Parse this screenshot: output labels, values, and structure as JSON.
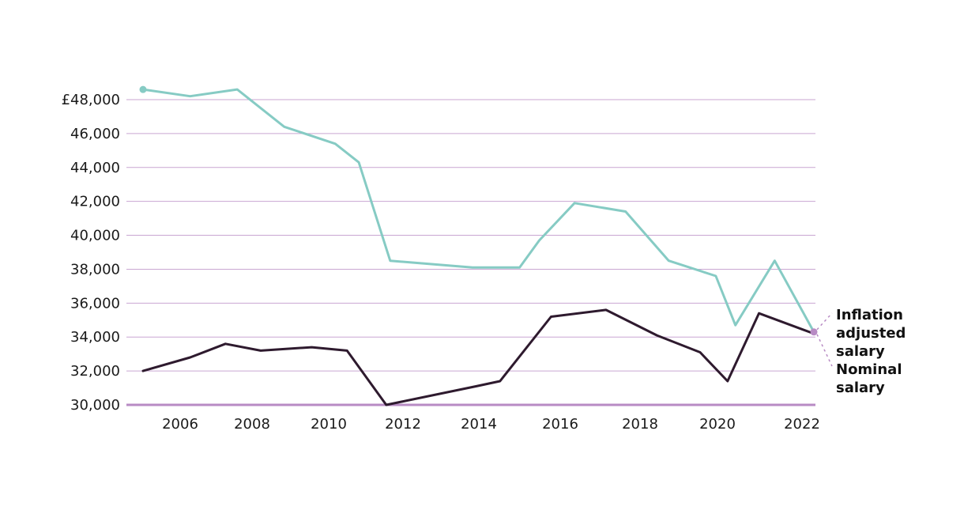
{
  "chart_data": {
    "type": "line",
    "title": "",
    "xlabel": "",
    "ylabel": "",
    "x": [
      2005,
      2006,
      2007,
      2008,
      2009,
      2010,
      2011,
      2012,
      2013,
      2014,
      2015,
      2016,
      2017,
      2018,
      2019,
      2020,
      2021,
      2022
    ],
    "xlim": [
      2004.6,
      2022.3
    ],
    "ylim": [
      30000,
      48000
    ],
    "x_ticks": [
      2006,
      2008,
      2010,
      2012,
      2014,
      2016,
      2018,
      2020,
      2022
    ],
    "y_ticks": [
      30000,
      32000,
      34000,
      36000,
      38000,
      40000,
      42000,
      44000,
      46000,
      48000
    ],
    "y_tick_labels": [
      "30,000",
      "32,000",
      "34,000",
      "36,000",
      "38,000",
      "40,000",
      "42,000",
      "44,000",
      "46,000",
      "£48,000"
    ],
    "grid": true,
    "series": [
      {
        "name": "Inflation adjusted salary",
        "color": "#86cbc4",
        "points": [
          [
            2005,
            48600
          ],
          [
            2006.2,
            48200
          ],
          [
            2007.4,
            48600
          ],
          [
            2008.6,
            46400
          ],
          [
            2009.9,
            45400
          ],
          [
            2010.5,
            44300
          ],
          [
            2011.3,
            38500
          ],
          [
            2013.4,
            38100
          ],
          [
            2014.6,
            38100
          ],
          [
            2015.1,
            39700
          ],
          [
            2016.0,
            41900
          ],
          [
            2017.3,
            41400
          ],
          [
            2018.4,
            38500
          ],
          [
            2019.6,
            37600
          ],
          [
            2020.1,
            34700
          ],
          [
            2021.1,
            38500
          ],
          [
            2022.1,
            34300
          ]
        ]
      },
      {
        "name": "Nominal salary",
        "color": "#2e1a2e",
        "points": [
          [
            2005,
            32000
          ],
          [
            2006.2,
            32800
          ],
          [
            2007.1,
            33600
          ],
          [
            2008.0,
            33200
          ],
          [
            2009.3,
            33400
          ],
          [
            2010.2,
            33200
          ],
          [
            2011.2,
            30000
          ],
          [
            2013.5,
            31100
          ],
          [
            2014.1,
            31400
          ],
          [
            2015.4,
            35200
          ],
          [
            2016.8,
            35600
          ],
          [
            2018.1,
            34100
          ],
          [
            2019.2,
            33100
          ],
          [
            2019.9,
            31400
          ],
          [
            2020.7,
            35400
          ],
          [
            2022.1,
            34200
          ]
        ]
      }
    ],
    "legend": {
      "placement": "right",
      "series1_label": [
        "Inflation",
        "adjusted",
        "salary"
      ],
      "series2_label": [
        "Nominal",
        "salary"
      ]
    },
    "colors": {
      "grid": "#c9a6d2",
      "baseline": "#b88bc4",
      "marker": "#b88bc4"
    }
  }
}
